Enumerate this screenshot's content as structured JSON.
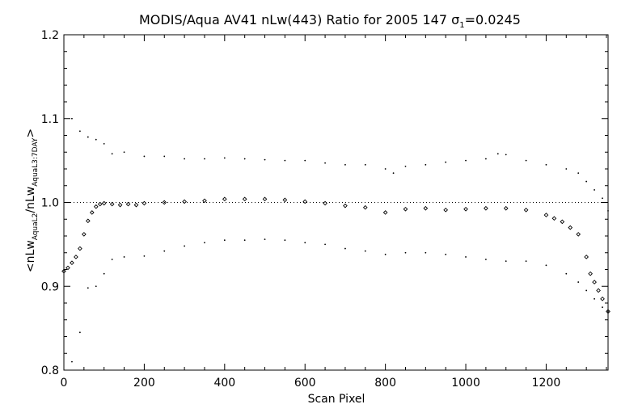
{
  "chart_data": {
    "type": "scatter",
    "title": {
      "prefix": "MODIS/Aqua AV41 nLw(443) Ratio for 2005 147 ",
      "sigma_symbol": "σ",
      "sigma_sub": "1",
      "suffix": "=0.0245"
    },
    "xlabel": "Scan Pixel",
    "ylabel": {
      "open": "<nLw",
      "sub1": "AquaL2",
      "mid": "/nLw",
      "sub2": "AquaL3:7DAY",
      "close": ">"
    },
    "xlim": [
      0,
      1354
    ],
    "ylim": [
      0.8,
      1.2
    ],
    "x_ticks": [
      0,
      200,
      400,
      600,
      800,
      1000,
      1200
    ],
    "x_tick_labels": [
      "0",
      "200",
      "400",
      "600",
      "800",
      "1000",
      "1200"
    ],
    "y_ticks": [
      0.8,
      0.9,
      1.0,
      1.1,
      1.2
    ],
    "y_tick_labels": [
      "0.8",
      "0.9",
      "1.0",
      "1.1",
      "1.2"
    ],
    "reference_line": 1.0,
    "grid": false,
    "series": [
      {
        "style": "diamond",
        "x": [
          0,
          10,
          20,
          30,
          40,
          50,
          60,
          70,
          80,
          90,
          100,
          120,
          140,
          160,
          180,
          200,
          250,
          300,
          350,
          400,
          450,
          500,
          550,
          600,
          650,
          700,
          750,
          800,
          850,
          900,
          950,
          1000,
          1050,
          1100,
          1150,
          1200,
          1220,
          1240,
          1260,
          1280,
          1300,
          1310,
          1320,
          1330,
          1340,
          1354
        ],
        "y": [
          0.918,
          0.922,
          0.928,
          0.935,
          0.945,
          0.962,
          0.978,
          0.988,
          0.995,
          0.998,
          0.999,
          0.998,
          0.997,
          0.998,
          0.997,
          0.999,
          1.0,
          1.001,
          1.002,
          1.004,
          1.004,
          1.004,
          1.003,
          1.001,
          0.999,
          0.996,
          0.994,
          0.988,
          0.992,
          0.993,
          0.991,
          0.992,
          0.993,
          0.993,
          0.991,
          0.985,
          0.981,
          0.977,
          0.97,
          0.962,
          0.935,
          0.915,
          0.905,
          0.895,
          0.885,
          0.87
        ]
      },
      {
        "style": "dot-upper",
        "x": [
          20,
          40,
          60,
          80,
          100,
          120,
          150,
          200,
          250,
          300,
          350,
          400,
          450,
          500,
          550,
          600,
          650,
          700,
          750,
          800,
          820,
          850,
          900,
          950,
          1000,
          1050,
          1080,
          1100,
          1150,
          1200,
          1250,
          1280,
          1300,
          1320,
          1340,
          1354
        ],
        "y": [
          1.1,
          1.085,
          1.078,
          1.075,
          1.07,
          1.058,
          1.06,
          1.055,
          1.055,
          1.052,
          1.052,
          1.053,
          1.052,
          1.051,
          1.05,
          1.05,
          1.047,
          1.045,
          1.045,
          1.04,
          1.035,
          1.043,
          1.045,
          1.048,
          1.05,
          1.052,
          1.058,
          1.057,
          1.05,
          1.045,
          1.04,
          1.035,
          1.025,
          1.015,
          1.005,
          0.99
        ]
      },
      {
        "style": "dot-lower",
        "x": [
          20,
          40,
          60,
          80,
          100,
          120,
          150,
          200,
          250,
          300,
          350,
          400,
          450,
          500,
          550,
          600,
          650,
          700,
          750,
          800,
          850,
          900,
          950,
          1000,
          1050,
          1100,
          1150,
          1200,
          1250,
          1280,
          1300,
          1320,
          1340,
          1354
        ],
        "y": [
          0.81,
          0.845,
          0.898,
          0.9,
          0.915,
          0.932,
          0.935,
          0.936,
          0.942,
          0.948,
          0.952,
          0.955,
          0.955,
          0.956,
          0.955,
          0.952,
          0.95,
          0.945,
          0.942,
          0.938,
          0.94,
          0.94,
          0.938,
          0.935,
          0.932,
          0.93,
          0.93,
          0.925,
          0.915,
          0.905,
          0.895,
          0.885,
          0.875,
          0.87
        ]
      }
    ]
  }
}
